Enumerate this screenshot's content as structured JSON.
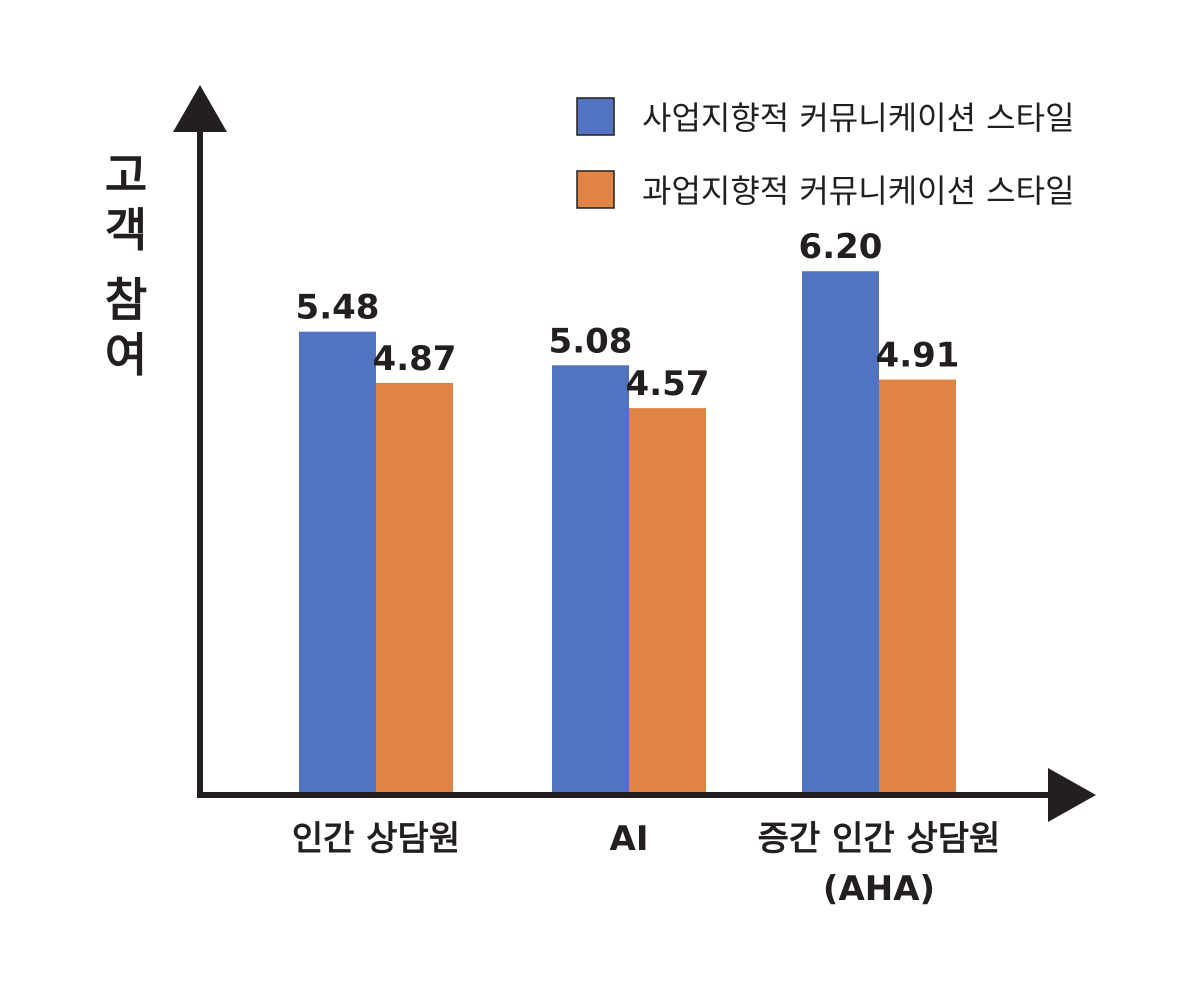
{
  "chart_data": {
    "type": "bar",
    "ylabel": "고객 참여",
    "categories": [
      "인간 상담원",
      "AI",
      "증간 인간 상담원\n(AHA)"
    ],
    "series": [
      {
        "name": "사업지향적 커뮤니케이션 스타일",
        "color": "#5273c0",
        "values": [
          5.48,
          5.08,
          6.2
        ]
      },
      {
        "name": "과업지향적 커뮤니케이션 스타일",
        "color": "#e08445",
        "values": [
          4.87,
          4.57,
          4.91
        ]
      }
    ],
    "data_labels": true,
    "legend_position": "top-right",
    "grid": false,
    "axis_color": "#231f20",
    "text_color": "#231f20"
  }
}
